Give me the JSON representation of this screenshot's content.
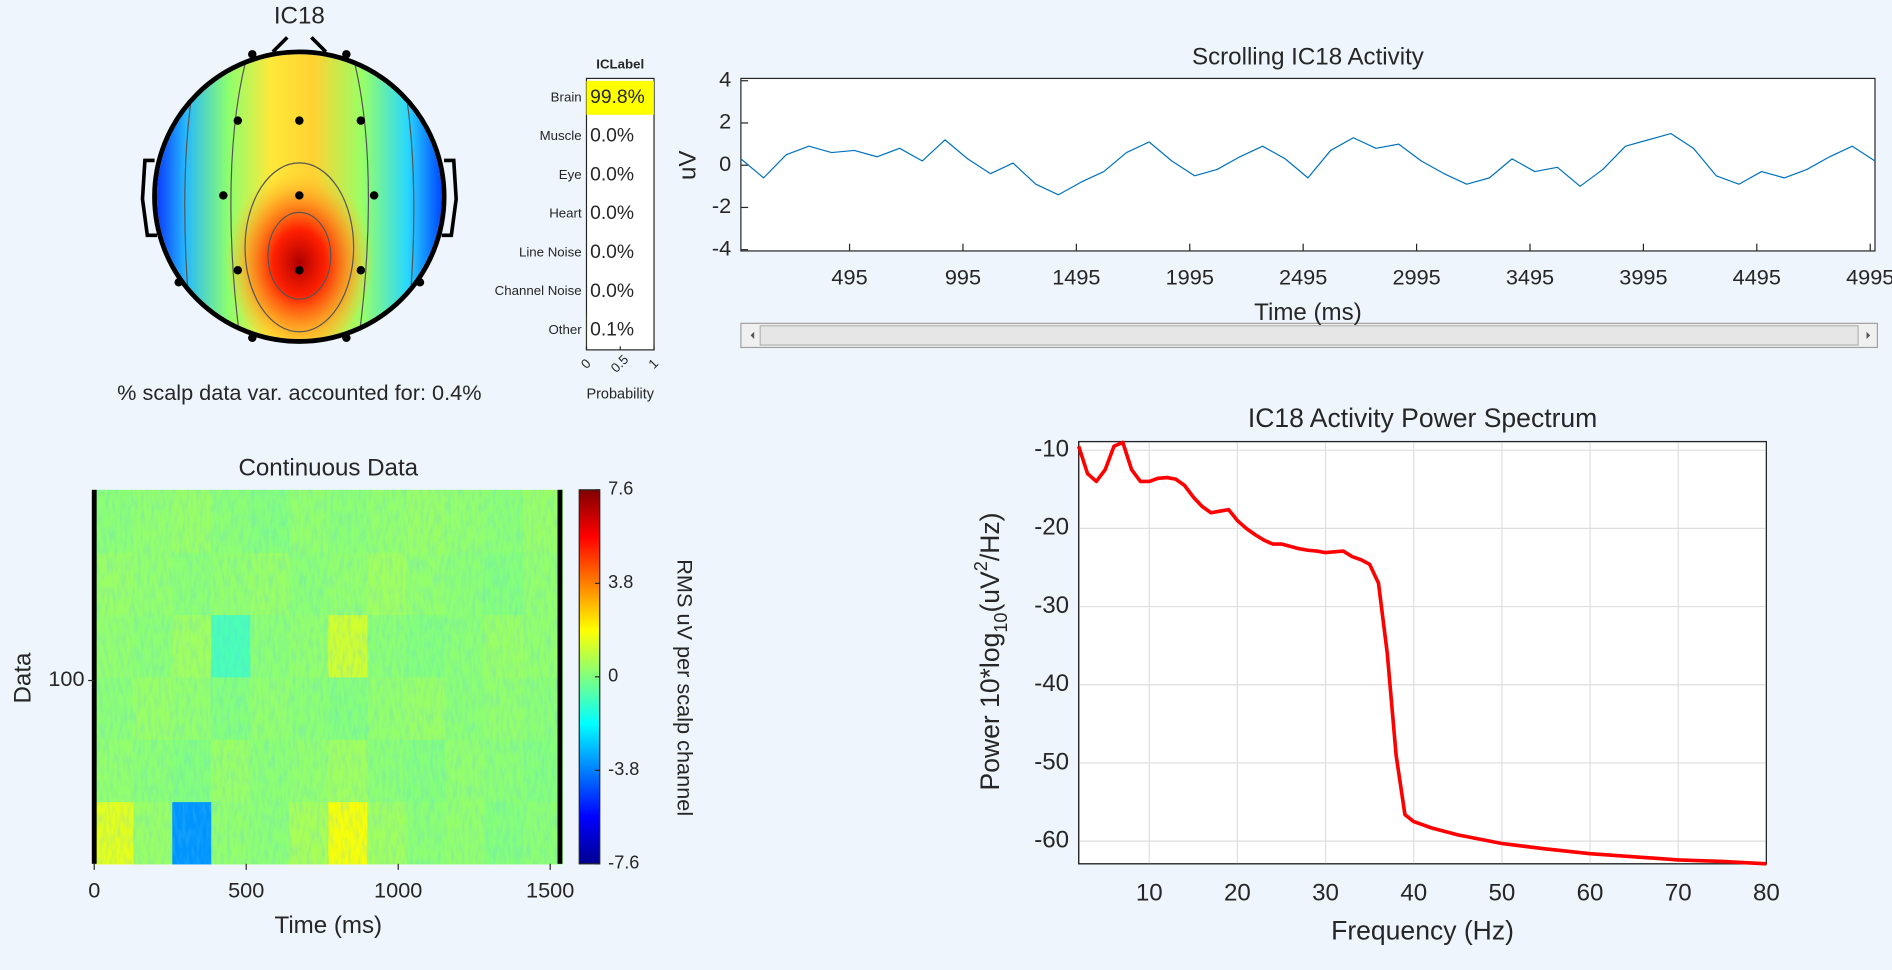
{
  "chart_data": [
    {
      "type": "topomap",
      "title": "IC18",
      "caption": "% scalp data var. accounted for: 0.4%"
    },
    {
      "type": "hbar",
      "title": "ICLabel",
      "categories": [
        "Brain",
        "Muscle",
        "Eye",
        "Heart",
        "Line Noise",
        "Channel Noise",
        "Other"
      ],
      "values": [
        0.998,
        0,
        0,
        0,
        0,
        0,
        0.001
      ],
      "value_labels": [
        "99.8%",
        "0.0%",
        "0.0%",
        "0.0%",
        "0.0%",
        "0.0%",
        "0.1%"
      ],
      "color": "#ffff00",
      "xlim": [
        0,
        1
      ],
      "xticks": [
        0,
        0.5,
        1
      ],
      "xlabel": "Probability"
    },
    {
      "type": "line",
      "title": "Scrolling IC18 Activity",
      "xlabel": "Time (ms)",
      "ylabel": "uV",
      "color": "#0072bd",
      "x": [
        16,
        116,
        216,
        316,
        416,
        516,
        616,
        716,
        816,
        916,
        1016,
        1116,
        1216,
        1316,
        1416,
        1516,
        1616,
        1716,
        1816,
        1916,
        2016,
        2116,
        2216,
        2316,
        2416,
        2516,
        2616,
        2716,
        2816,
        2916,
        3016,
        3116,
        3216,
        3316,
        3416,
        3516,
        3616,
        3716,
        3816,
        3916,
        4016,
        4116,
        4216,
        4316,
        4416,
        4516,
        4616,
        4716,
        4816,
        4916,
        5016
      ],
      "values": [
        0.3,
        -0.6,
        0.5,
        0.9,
        0.6,
        0.7,
        0.4,
        0.8,
        0.2,
        1.2,
        0.3,
        -0.4,
        0.1,
        -0.9,
        -1.4,
        -0.8,
        -0.3,
        0.6,
        1.1,
        0.2,
        -0.5,
        -0.2,
        0.4,
        0.9,
        0.3,
        -0.6,
        0.7,
        1.3,
        0.8,
        1.0,
        0.2,
        -0.4,
        -0.9,
        -0.6,
        0.3,
        -0.3,
        -0.1,
        -1.0,
        -0.2,
        0.9,
        1.2,
        1.5,
        0.8,
        -0.5,
        -0.9,
        -0.3,
        -0.6,
        -0.2,
        0.4,
        0.9,
        0.2
      ],
      "xlim": [
        16,
        5016
      ],
      "xticks": [
        495,
        995,
        1495,
        1995,
        2495,
        2995,
        3495,
        3995,
        4495,
        4995
      ],
      "ylim": [
        -4.06,
        4.11
      ],
      "yticks": [
        -4,
        -2,
        0,
        2,
        4
      ]
    },
    {
      "type": "heatmap",
      "title": "Continuous Data",
      "xlabel": "Time (ms)",
      "ylabel": "Data",
      "xlim": [
        0,
        1540
      ],
      "xticks": [
        0,
        500,
        1000,
        1500
      ],
      "ylim": [
        0,
        204
      ],
      "yticks": [
        100
      ],
      "clim": [
        -7.6,
        7.6
      ],
      "cticks": [
        -7.6,
        -3.8,
        0,
        3.8,
        7.6
      ],
      "clabel": "RMS uV per scalp channel",
      "z": [
        [
          1.5,
          0.4,
          -3.5,
          0.3,
          0.2,
          0.6,
          1.8,
          0.5,
          0.2,
          0.3,
          0.1,
          0.2
        ],
        [
          0.3,
          0.2,
          0.1,
          0.4,
          0.2,
          0.3,
          0.5,
          0.2,
          0.1,
          0.3,
          0.2,
          0.1
        ],
        [
          0.2,
          0.4,
          0.3,
          0.1,
          0.3,
          0.2,
          0.1,
          0.3,
          0.4,
          0.2,
          0.3,
          0.2
        ],
        [
          0.3,
          0.2,
          0.5,
          -0.8,
          0.2,
          0.3,
          1.2,
          0.2,
          0.1,
          0.2,
          0.4,
          0.3
        ],
        [
          0.4,
          0.3,
          0.2,
          0.3,
          0.4,
          0.2,
          0.3,
          0.5,
          0.3,
          0.2,
          0.1,
          0.3
        ],
        [
          0.2,
          0.3,
          0.4,
          0.2,
          0.1,
          0.3,
          0.2,
          0.3,
          0.4,
          0.3,
          0.2,
          0.4
        ]
      ]
    },
    {
      "type": "spectrum",
      "title": "IC18 Activity Power Spectrum",
      "xlabel": "Frequency (Hz)",
      "ylabel": [
        "Power 10*log",
        "10",
        "(uV",
        "2",
        "/Hz)"
      ],
      "color": "#ff0000",
      "grid": true,
      "x": [
        2,
        3,
        4,
        5,
        6,
        7,
        8,
        9,
        10,
        11,
        12,
        13,
        14,
        15,
        16,
        17,
        18,
        19,
        20,
        21,
        22,
        23,
        24,
        25,
        26,
        27,
        28,
        29,
        30,
        31,
        32,
        33,
        34,
        35,
        36,
        37,
        38,
        39,
        40,
        42,
        45,
        50,
        55,
        60,
        65,
        70,
        75,
        80
      ],
      "values": [
        -9.5,
        -13,
        -14,
        -12.5,
        -9.5,
        -9,
        -12.5,
        -14,
        -14,
        -13.6,
        -13.5,
        -13.7,
        -14.5,
        -16,
        -17.2,
        -18,
        -17.8,
        -17.6,
        -19,
        -20,
        -20.8,
        -21.5,
        -22,
        -22,
        -22.3,
        -22.6,
        -22.8,
        -22.9,
        -23.1,
        -23,
        -22.9,
        -23.6,
        -24,
        -24.6,
        -27,
        -36,
        -49,
        -56.6,
        -57.5,
        -58.3,
        -59.2,
        -60.3,
        -61,
        -61.6,
        -62,
        -62.4,
        -62.6,
        -62.9
      ],
      "xlim": [
        2,
        80
      ],
      "xticks": [
        10,
        20,
        30,
        40,
        50,
        60,
        70,
        80
      ],
      "ylim": [
        -62.9,
        -8.9
      ],
      "yticks": [
        -60,
        -50,
        -40,
        -30,
        -20,
        -10
      ]
    }
  ]
}
